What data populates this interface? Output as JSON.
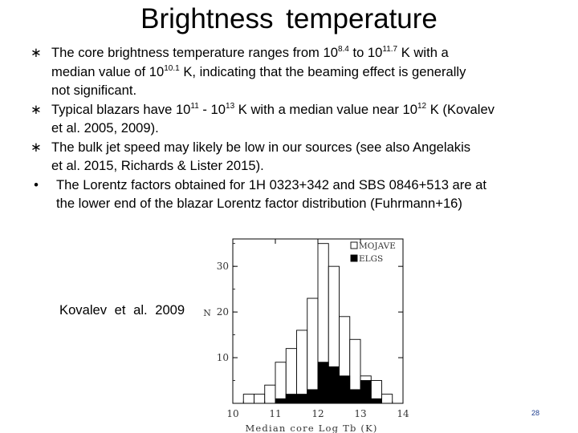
{
  "slide": {
    "title": "Brightness  temperature",
    "caption": "Kovalev  et  al.  2009",
    "page_number": "28"
  },
  "bullets": [
    {
      "marker": "∗",
      "lines": [
        [
          {
            "t": "The core brightness temperature ranges from 10"
          },
          {
            "sup": "8.4"
          },
          {
            "t": " to 10"
          },
          {
            "sup": "11.7"
          },
          {
            "t": " K with a"
          }
        ],
        [
          {
            "t": "median value of 10"
          },
          {
            "sup": "10.1"
          },
          {
            "t": " K,  indicating  that  the beaming effect is generally"
          }
        ],
        [
          {
            "t": "not significant."
          }
        ]
      ]
    },
    {
      "marker": "∗",
      "lines": [
        [
          {
            "t": "Typical  blazars have 10"
          },
          {
            "sup": "11"
          },
          {
            "t": " - 10"
          },
          {
            "sup": "13"
          },
          {
            "t": " K with a median  value near 10"
          },
          {
            "sup": "12"
          },
          {
            "t": " K (Kovalev"
          }
        ],
        [
          {
            "t": "et al. 2005, 2009)."
          }
        ]
      ]
    },
    {
      "marker": "∗",
      "lines": [
        [
          {
            "t": "The  bulk jet  speed may likely be low in our sources  (see  also  Angelakis"
          }
        ],
        [
          {
            "t": "et al. 2015,  Richards & Lister 2015)."
          }
        ]
      ]
    },
    {
      "marker": "•",
      "lines": [
        [
          {
            "t": "The Lorentz factors obtained for 1H 0323+342 and SBS 0846+513 are at"
          }
        ],
        [
          {
            "t": "the lower end of the blazar Lorentz factor distribution  (Fuhrmann+16)"
          }
        ]
      ]
    }
  ],
  "chart_data": {
    "type": "bar",
    "xlabel": "Median core Log Tb (K)",
    "ylabel": "N",
    "xlim": [
      10,
      14
    ],
    "ylim": [
      0,
      36
    ],
    "x_ticks": [
      "10",
      "11",
      "12",
      "13",
      "14"
    ],
    "y_ticks": [
      "10",
      "20",
      "30"
    ],
    "bin_width": 0.25,
    "bin_starts": [
      10.25,
      10.5,
      10.75,
      11.0,
      11.25,
      11.5,
      11.75,
      12.0,
      12.25,
      12.5,
      12.75,
      13.0,
      13.25,
      13.5
    ],
    "series": [
      {
        "name": "MOJAVE",
        "fill": "#ffffff",
        "values": [
          2,
          2,
          4,
          9,
          12,
          16,
          23,
          35,
          30,
          19,
          14,
          6,
          5,
          2
        ]
      },
      {
        "name": "ELGS",
        "fill": "#000000",
        "values": [
          0,
          0,
          0,
          1,
          2,
          2,
          3,
          9,
          8,
          6,
          3,
          5,
          1,
          0
        ]
      }
    ],
    "legend_position": "top-right"
  }
}
